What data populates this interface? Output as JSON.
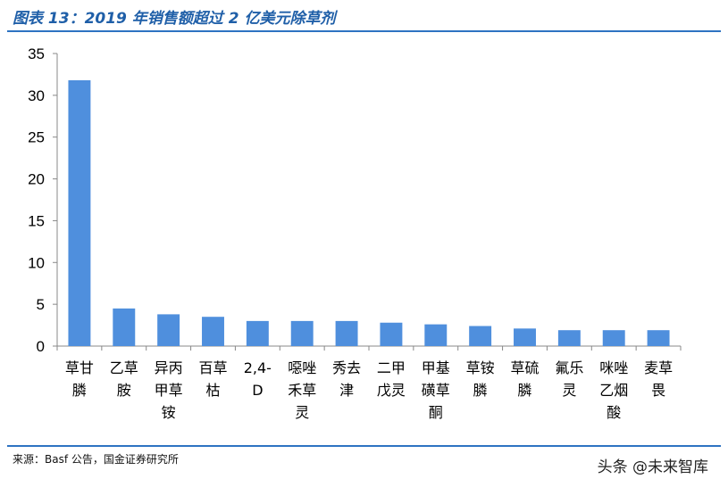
{
  "header": {
    "title": "图表 13：2019 年销售额超过 2 亿美元除草剂"
  },
  "footer": {
    "source": "来源：Basf 公告，国金证券研究所",
    "watermark": "头条 @未来智库"
  },
  "colors": {
    "bar": "#4f8fdd",
    "axis": "#888888",
    "rule": "#2e73c2"
  },
  "chart_data": {
    "type": "bar",
    "title": "",
    "xlabel": "",
    "ylabel": "",
    "ylim": [
      0,
      35
    ],
    "yticks": [
      0,
      5,
      10,
      15,
      20,
      25,
      30,
      35
    ],
    "grid": false,
    "categories": [
      "草甘膦",
      "乙草胺",
      "异丙甲草铵",
      "百草枯",
      "2,4-D",
      "噁唑禾草灵",
      "秀去津",
      "二甲戊灵",
      "甲基磺草酮",
      "草铵膦",
      "草硫膦",
      "氟乐灵",
      "咪唑乙烟酸",
      "麦草畏"
    ],
    "category_lines": [
      [
        "草甘",
        "膦"
      ],
      [
        "乙草",
        "胺"
      ],
      [
        "异丙",
        "甲草",
        "铵"
      ],
      [
        "百草",
        "枯"
      ],
      [
        "2,4-",
        "D"
      ],
      [
        "噁唑",
        "禾草",
        "灵"
      ],
      [
        "秀去",
        "津"
      ],
      [
        "二甲",
        "戊灵"
      ],
      [
        "甲基",
        "磺草",
        "酮"
      ],
      [
        "草铵",
        "膦"
      ],
      [
        "草硫",
        "膦"
      ],
      [
        "氟乐",
        "灵"
      ],
      [
        "咪唑",
        "乙烟",
        "酸"
      ],
      [
        "麦草",
        "畏"
      ]
    ],
    "values": [
      31.8,
      4.5,
      3.8,
      3.5,
      3.0,
      3.0,
      3.0,
      2.8,
      2.6,
      2.4,
      2.1,
      1.9,
      1.9,
      1.9
    ]
  }
}
